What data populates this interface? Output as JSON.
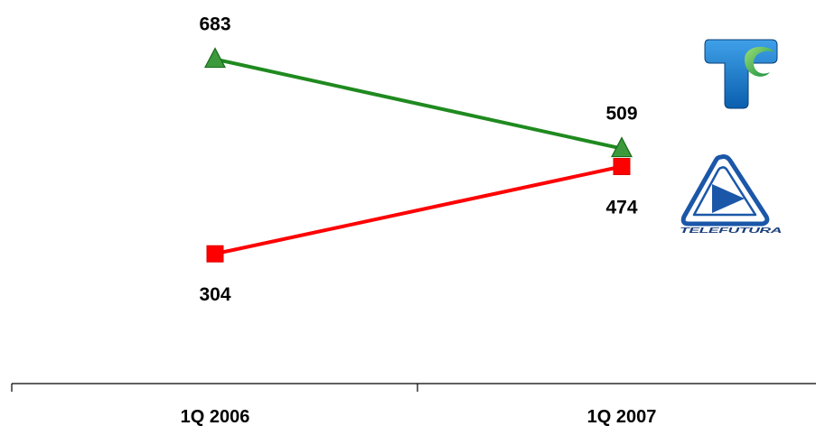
{
  "chart_data": {
    "type": "line",
    "categories": [
      "1Q 2006",
      "1Q 2007"
    ],
    "series": [
      {
        "values": [
          683,
          509
        ],
        "color": "#1f8a1f",
        "marker": "triangle",
        "marker_fill": "#3c9a3c",
        "marker_stroke": "#1a6b1a"
      },
      {
        "values": [
          304,
          474
        ],
        "color": "#ff0000",
        "marker": "square",
        "marker_fill": "#ff0000",
        "marker_stroke": "#e00000"
      }
    ],
    "label_positions": [
      [
        "above",
        "above"
      ],
      [
        "below",
        "below"
      ]
    ],
    "grid": false,
    "legend": "none"
  },
  "logos": [
    {
      "name": "telemundo-style-t-logo",
      "colors": {
        "primary": "#0a6fc2",
        "accent": "#19a24a"
      }
    },
    {
      "name": "telefutura-logo",
      "caption": "TELEFUTURA",
      "colors": {
        "primary": "#1b57a8"
      }
    }
  ]
}
